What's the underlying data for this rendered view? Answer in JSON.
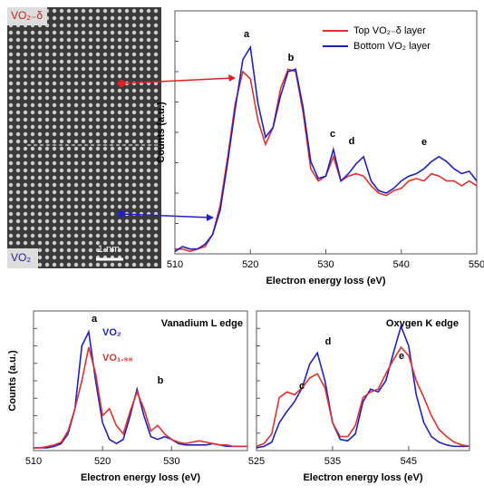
{
  "image": {
    "top_label": "VO₂₋δ",
    "bottom_label": "VO₂",
    "scale_bar": "1 nm"
  },
  "chart_data": [
    {
      "type": "line",
      "xlabel": "Electron energy loss (eV)",
      "ylabel": "Counts (a.u.)",
      "xlim": [
        510,
        550
      ],
      "ylim": [
        0,
        100
      ],
      "xticks": [
        510,
        520,
        530,
        540,
        550
      ],
      "legend": "upper right",
      "annotations": [
        "a",
        "b",
        "c",
        "d",
        "e"
      ],
      "x": [
        510,
        511,
        512,
        513,
        514,
        515,
        516,
        517,
        518,
        519,
        520,
        521,
        522,
        523,
        524,
        525,
        526,
        527,
        528,
        529,
        530,
        531,
        532,
        533,
        534,
        535,
        536,
        537,
        538,
        539,
        540,
        541,
        542,
        543,
        544,
        545,
        546,
        547,
        548,
        549,
        550
      ],
      "series": [
        {
          "name": "Top VO₂₋δ layer",
          "color": "#e03030",
          "values": [
            2,
            2,
            1,
            2,
            3,
            8,
            20,
            40,
            62,
            75,
            72,
            55,
            45,
            52,
            68,
            76,
            75,
            58,
            35,
            30,
            32,
            40,
            30,
            32,
            33,
            32,
            28,
            25,
            24,
            26,
            27,
            30,
            31,
            30,
            33,
            32,
            30,
            30,
            28,
            30,
            28
          ]
        },
        {
          "name": "Bottom VO₂ layer",
          "color": "#2020c0",
          "values": [
            1,
            3,
            2,
            2,
            4,
            8,
            18,
            38,
            60,
            80,
            85,
            62,
            48,
            52,
            65,
            75,
            76,
            60,
            38,
            31,
            32,
            43,
            30,
            33,
            37,
            40,
            30,
            26,
            25,
            27,
            30,
            32,
            33,
            35,
            38,
            40,
            38,
            35,
            33,
            34,
            30
          ]
        }
      ]
    },
    {
      "type": "line",
      "xlabel": "Electron energy loss (eV)",
      "ylabel": "Counts (a.u.)",
      "title": "Vanadium L edge",
      "xlim": [
        510,
        541
      ],
      "ylim": [
        0,
        100
      ],
      "xticks": [
        510,
        520,
        530
      ],
      "annotations": [
        "a",
        "b"
      ],
      "x": [
        510,
        511,
        512,
        513,
        514,
        515,
        516,
        517,
        518,
        519,
        520,
        521,
        522,
        523,
        524,
        525,
        526,
        527,
        528,
        529,
        530,
        531,
        532,
        533,
        534,
        535,
        536,
        537,
        538,
        539,
        540,
        541
      ],
      "series": [
        {
          "name": "VO₂",
          "color": "#2020c0",
          "values": [
            2,
            2,
            2,
            3,
            5,
            12,
            30,
            75,
            85,
            50,
            20,
            8,
            5,
            8,
            25,
            44,
            25,
            10,
            8,
            10,
            8,
            5,
            4,
            4,
            4,
            4,
            5,
            4,
            3,
            3,
            3,
            3
          ]
        },
        {
          "name": "VO₁.₉₈",
          "color": "#e03030",
          "values": [
            2,
            2,
            3,
            4,
            6,
            14,
            30,
            50,
            74,
            55,
            25,
            30,
            18,
            12,
            28,
            42,
            30,
            14,
            18,
            12,
            8,
            6,
            5,
            6,
            7,
            6,
            5,
            4,
            4,
            3,
            3,
            3
          ]
        }
      ]
    },
    {
      "type": "line",
      "xlabel": "Electron energy loss (eV)",
      "title": "Oxygen K edge",
      "xlim": [
        525,
        553
      ],
      "ylim": [
        0,
        100
      ],
      "xticks": [
        525,
        535,
        545
      ],
      "annotations": [
        "c",
        "d",
        "e"
      ],
      "x": [
        525,
        526,
        527,
        528,
        529,
        530,
        531,
        532,
        533,
        534,
        535,
        536,
        537,
        538,
        539,
        540,
        541,
        542,
        543,
        544,
        545,
        546,
        547,
        548,
        549,
        550,
        551,
        552,
        553
      ],
      "series": [
        {
          "name": "VO₂",
          "color": "#2020c0",
          "values": [
            2,
            3,
            6,
            20,
            28,
            35,
            45,
            62,
            70,
            50,
            20,
            8,
            7,
            12,
            35,
            44,
            42,
            50,
            70,
            89,
            75,
            40,
            20,
            10,
            6,
            4,
            3,
            3,
            3
          ]
        },
        {
          "name": "VO₁.₉₈",
          "color": "#e03030",
          "values": [
            3,
            5,
            12,
            38,
            42,
            40,
            45,
            52,
            55,
            45,
            20,
            10,
            10,
            18,
            38,
            42,
            44,
            55,
            65,
            74,
            68,
            50,
            38,
            25,
            15,
            10,
            6,
            4,
            3
          ]
        }
      ]
    }
  ]
}
